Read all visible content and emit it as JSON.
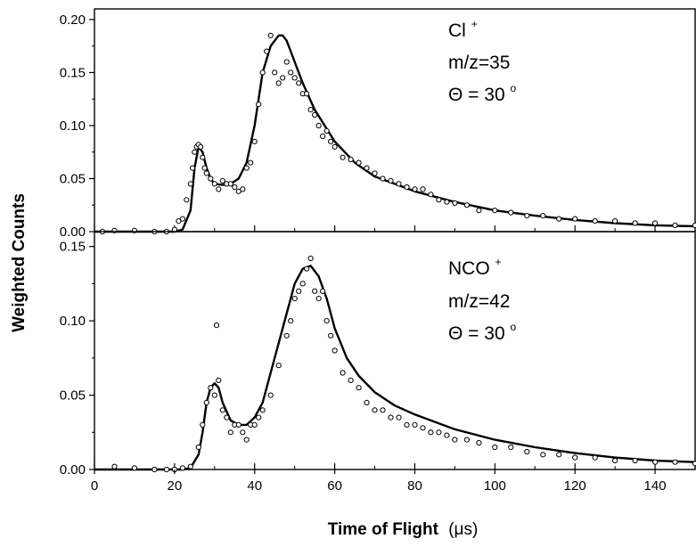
{
  "chart_data": {
    "type": "scatter",
    "xlabel": "Time of Flight",
    "xunit": "(μs)",
    "ylabel": "Weighted Counts",
    "xlim": [
      0,
      150
    ],
    "x_ticks": [
      0,
      20,
      40,
      60,
      80,
      100,
      120,
      140
    ],
    "panels": [
      {
        "id": "top",
        "annotation": {
          "species": "Cl",
          "charge": "+",
          "mass": "m/z=35",
          "angle": "Θ = 30",
          "angle_unit": "o"
        },
        "ylim": [
          0,
          0.21
        ],
        "y_ticks": [
          "0.00",
          "0.05",
          "0.10",
          "0.15",
          "0.20"
        ],
        "series": [
          {
            "kind": "fit",
            "x": [
              0,
              20,
              22,
              24,
              25,
              26,
              27,
              28,
              29,
              30,
              32,
              34,
              36,
              38,
              40,
              42,
              44,
              46,
              47,
              48,
              50,
              52,
              55,
              60,
              65,
              70,
              75,
              80,
              90,
              100,
              110,
              120,
              130,
              140,
              150
            ],
            "y": [
              0,
              0,
              0.002,
              0.02,
              0.06,
              0.08,
              0.075,
              0.06,
              0.05,
              0.045,
              0.044,
              0.045,
              0.05,
              0.065,
              0.1,
              0.15,
              0.175,
              0.185,
              0.185,
              0.18,
              0.16,
              0.14,
              0.115,
              0.085,
              0.065,
              0.052,
              0.045,
              0.038,
              0.028,
              0.02,
              0.015,
              0.011,
              0.008,
              0.006,
              0.005
            ]
          },
          {
            "kind": "data",
            "x": [
              2,
              5,
              10,
              15,
              18,
              20,
              21,
              22,
              23,
              24,
              24.5,
              25,
              25.5,
              26,
              26.5,
              27,
              27.5,
              28,
              29,
              30,
              31,
              32,
              33,
              34,
              35,
              36,
              37,
              38,
              39,
              40,
              41,
              42,
              43,
              44,
              45,
              46,
              47,
              48,
              49,
              50,
              51,
              52,
              53,
              54,
              55,
              56,
              57,
              58,
              59,
              60,
              62,
              64,
              66,
              68,
              70,
              72,
              74,
              76,
              78,
              80,
              82,
              84,
              86,
              88,
              90,
              93,
              96,
              100,
              104,
              108,
              112,
              116,
              120,
              125,
              130,
              135,
              140,
              145,
              150
            ],
            "y": [
              0.0,
              0.001,
              0.001,
              0.0,
              0.0,
              0.002,
              0.01,
              0.012,
              0.03,
              0.045,
              0.06,
              0.075,
              0.08,
              0.082,
              0.08,
              0.07,
              0.06,
              0.055,
              0.05,
              0.045,
              0.04,
              0.048,
              0.045,
              0.045,
              0.042,
              0.038,
              0.04,
              0.06,
              0.065,
              0.085,
              0.12,
              0.15,
              0.17,
              0.185,
              0.15,
              0.14,
              0.145,
              0.16,
              0.15,
              0.145,
              0.14,
              0.13,
              0.13,
              0.115,
              0.11,
              0.1,
              0.09,
              0.095,
              0.085,
              0.08,
              0.07,
              0.068,
              0.065,
              0.06,
              0.055,
              0.05,
              0.048,
              0.045,
              0.042,
              0.04,
              0.04,
              0.035,
              0.03,
              0.028,
              0.027,
              0.025,
              0.02,
              0.02,
              0.018,
              0.015,
              0.015,
              0.012,
              0.012,
              0.01,
              0.01,
              0.008,
              0.008,
              0.006,
              0.006
            ]
          }
        ]
      },
      {
        "id": "bottom",
        "annotation": {
          "species": "NCO",
          "charge": "+",
          "mass": "m/z=42",
          "angle": "Θ = 30",
          "angle_unit": "o"
        },
        "ylim": [
          0,
          0.16
        ],
        "y_ticks": [
          "0.00",
          "0.05",
          "0.10",
          "0.15"
        ],
        "series": [
          {
            "kind": "fit",
            "x": [
              0,
              22,
              24,
              26,
              27,
              28,
              29,
              30,
              31,
              32,
              34,
              36,
              38,
              40,
              42,
              44,
              46,
              48,
              50,
              52,
              54,
              56,
              58,
              60,
              63,
              66,
              70,
              75,
              80,
              90,
              100,
              110,
              120,
              130,
              140,
              150
            ],
            "y": [
              0,
              0,
              0.001,
              0.01,
              0.025,
              0.045,
              0.055,
              0.058,
              0.055,
              0.045,
              0.033,
              0.03,
              0.03,
              0.035,
              0.045,
              0.065,
              0.085,
              0.105,
              0.125,
              0.135,
              0.137,
              0.13,
              0.115,
              0.095,
              0.075,
              0.063,
              0.052,
              0.043,
              0.037,
              0.027,
              0.02,
              0.015,
              0.011,
              0.008,
              0.006,
              0.005
            ]
          },
          {
            "kind": "data",
            "x": [
              5,
              10,
              15,
              18,
              20,
              22,
              24,
              26,
              27,
              28,
              29,
              30,
              30.5,
              31,
              32,
              33,
              34,
              35,
              36,
              37,
              38,
              39,
              40,
              41,
              42,
              44,
              46,
              48,
              49,
              50,
              51,
              52,
              53,
              54,
              55,
              56,
              57,
              58,
              59,
              60,
              62,
              64,
              66,
              68,
              70,
              72,
              74,
              76,
              78,
              80,
              82,
              84,
              86,
              88,
              90,
              93,
              96,
              100,
              104,
              108,
              112,
              116,
              120,
              125,
              130,
              135,
              140,
              145,
              150
            ],
            "y": [
              0.002,
              0.001,
              0.0,
              0.0,
              0.0,
              0.001,
              0.002,
              0.015,
              0.03,
              0.045,
              0.055,
              0.05,
              0.097,
              0.06,
              0.04,
              0.035,
              0.025,
              0.03,
              0.03,
              0.025,
              0.02,
              0.03,
              0.03,
              0.035,
              0.04,
              0.05,
              0.07,
              0.09,
              0.1,
              0.115,
              0.12,
              0.125,
              0.135,
              0.142,
              0.12,
              0.115,
              0.12,
              0.1,
              0.09,
              0.08,
              0.065,
              0.06,
              0.055,
              0.045,
              0.04,
              0.04,
              0.035,
              0.035,
              0.03,
              0.03,
              0.028,
              0.025,
              0.025,
              0.023,
              0.02,
              0.02,
              0.018,
              0.015,
              0.015,
              0.012,
              0.01,
              0.01,
              0.008,
              0.008,
              0.006,
              0.006,
              0.005,
              0.005,
              0.004
            ]
          }
        ]
      }
    ]
  }
}
